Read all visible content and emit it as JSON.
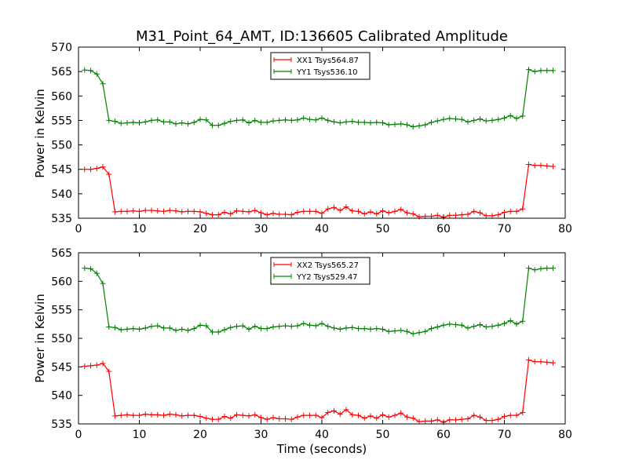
{
  "chart_data": {
    "type": "line",
    "title": "M31_Point_64_AMT, ID:136605 Calibrated Amplitude",
    "xlabel": "Time (seconds)",
    "panels": [
      {
        "ylabel": "Power in Kelvin",
        "xlim": [
          0,
          80
        ],
        "ylim": [
          535,
          570
        ],
        "xticks": [
          "0",
          "10",
          "20",
          "30",
          "40",
          "50",
          "60",
          "70",
          "80"
        ],
        "yticks": [
          "535",
          "540",
          "545",
          "550",
          "555",
          "560",
          "565",
          "570"
        ],
        "legend_loc": "upper center",
        "series": [
          {
            "name": "XX1 Tsys564.87",
            "color": "#ff0000",
            "x": [
              1,
              2,
              3,
              4,
              5,
              6,
              7,
              8,
              9,
              10,
              11,
              12,
              13,
              14,
              15,
              16,
              17,
              18,
              19,
              20,
              21,
              22,
              23,
              24,
              25,
              26,
              27,
              28,
              29,
              30,
              31,
              32,
              33,
              34,
              35,
              36,
              37,
              38,
              39,
              40,
              41,
              42,
              43,
              44,
              45,
              46,
              47,
              48,
              49,
              50,
              51,
              52,
              53,
              54,
              55,
              56,
              57,
              58,
              59,
              60,
              61,
              62,
              63,
              64,
              65,
              66,
              67,
              68,
              69,
              70,
              71,
              72,
              73,
              74,
              75,
              76,
              77,
              78
            ],
            "y": [
              545,
              545,
              545.2,
              545.5,
              544,
              536.3,
              536.4,
              536.4,
              536.5,
              536.4,
              536.6,
              536.6,
              536.5,
              536.4,
              536.6,
              536.5,
              536.3,
              536.4,
              536.4,
              536.3,
              536,
              535.7,
              535.7,
              536.2,
              535.9,
              536.5,
              536.4,
              536.3,
              536.6,
              536.1,
              535.7,
              536,
              535.8,
              535.8,
              535.7,
              536.2,
              536.4,
              536.4,
              536.4,
              536,
              536.9,
              537.2,
              536.6,
              537.3,
              536.5,
              536.4,
              535.9,
              536.3,
              535.9,
              536.5,
              536.1,
              536.4,
              536.8,
              536.1,
              535.9,
              535.3,
              535.4,
              535.4,
              535.6,
              535.2,
              535.6,
              535.6,
              535.7,
              535.8,
              536.4,
              536.1,
              535.5,
              535.5,
              535.7,
              536.2,
              536.4,
              536.4,
              536.9,
              546,
              545.8,
              545.8,
              545.7,
              545.6
            ]
          },
          {
            "name": "YY1 Tsys536.10",
            "color": "#008000",
            "x": [
              1,
              2,
              3,
              4,
              5,
              6,
              7,
              8,
              9,
              10,
              11,
              12,
              13,
              14,
              15,
              16,
              17,
              18,
              19,
              20,
              21,
              22,
              23,
              24,
              25,
              26,
              27,
              28,
              29,
              30,
              31,
              32,
              33,
              34,
              35,
              36,
              37,
              38,
              39,
              40,
              41,
              42,
              43,
              44,
              45,
              46,
              47,
              48,
              49,
              50,
              51,
              52,
              53,
              54,
              55,
              56,
              57,
              58,
              59,
              60,
              61,
              62,
              63,
              64,
              65,
              66,
              67,
              68,
              69,
              70,
              71,
              72,
              73,
              74,
              75,
              76,
              77,
              78
            ],
            "y": [
              565.3,
              565.2,
              564.5,
              562.5,
              555,
              554.8,
              554.4,
              554.5,
              554.6,
              554.5,
              554.7,
              555,
              555.1,
              554.7,
              554.7,
              554.3,
              554.5,
              554.3,
              554.6,
              555.2,
              555.1,
              554,
              554,
              554.4,
              554.8,
              555,
              555.1,
              554.5,
              555,
              554.6,
              554.6,
              554.9,
              555,
              555.1,
              555,
              555.1,
              555.5,
              555.2,
              555.1,
              555.5,
              555,
              554.7,
              554.5,
              554.7,
              554.8,
              554.6,
              554.6,
              554.5,
              554.6,
              554.5,
              554.1,
              554.2,
              554.3,
              554.1,
              553.7,
              553.9,
              554.1,
              554.6,
              554.9,
              555.2,
              555.4,
              555.3,
              555.2,
              554.7,
              555,
              555.3,
              554.9,
              555,
              555.2,
              555.5,
              556,
              555.4,
              555.9,
              565.4,
              565,
              565.2,
              565.2,
              565.2
            ]
          }
        ]
      },
      {
        "ylabel": "Power in Kelvin",
        "xlim": [
          0,
          80
        ],
        "ylim": [
          535,
          565
        ],
        "xticks": [
          "0",
          "10",
          "20",
          "30",
          "40",
          "50",
          "60",
          "70",
          "80"
        ],
        "yticks": [
          "535",
          "540",
          "545",
          "550",
          "555",
          "560",
          "565"
        ],
        "legend_loc": "upper center",
        "series": [
          {
            "name": "XX2 Tsys565.27",
            "color": "#ff0000",
            "x": [
              1,
              2,
              3,
              4,
              5,
              6,
              7,
              8,
              9,
              10,
              11,
              12,
              13,
              14,
              15,
              16,
              17,
              18,
              19,
              20,
              21,
              22,
              23,
              24,
              25,
              26,
              27,
              28,
              29,
              30,
              31,
              32,
              33,
              34,
              35,
              36,
              37,
              38,
              39,
              40,
              41,
              42,
              43,
              44,
              45,
              46,
              47,
              48,
              49,
              50,
              51,
              52,
              53,
              54,
              55,
              56,
              57,
              58,
              59,
              60,
              61,
              62,
              63,
              64,
              65,
              66,
              67,
              68,
              69,
              70,
              71,
              72,
              73,
              74,
              75,
              76,
              77,
              78
            ],
            "y": [
              545.1,
              545.2,
              545.3,
              545.6,
              544.2,
              536.4,
              536.5,
              536.6,
              536.5,
              536.5,
              536.7,
              536.6,
              536.6,
              536.5,
              536.7,
              536.6,
              536.4,
              536.5,
              536.5,
              536.3,
              536,
              535.8,
              535.8,
              536.3,
              536,
              536.6,
              536.5,
              536.4,
              536.6,
              536.1,
              535.8,
              536.1,
              535.9,
              535.9,
              535.8,
              536.2,
              536.5,
              536.5,
              536.5,
              536.1,
              537,
              537.3,
              536.7,
              537.5,
              536.6,
              536.5,
              536,
              536.4,
              536,
              536.6,
              536.2,
              536.5,
              536.9,
              536.2,
              536,
              535.4,
              535.5,
              535.5,
              535.7,
              535.3,
              535.7,
              535.7,
              535.8,
              535.9,
              536.5,
              536.2,
              535.6,
              535.6,
              535.8,
              536.3,
              536.5,
              536.5,
              537,
              546.2,
              545.9,
              545.9,
              545.8,
              545.7
            ]
          },
          {
            "name": "YY2 Tsys529.47",
            "color": "#008000",
            "x": [
              1,
              2,
              3,
              4,
              5,
              6,
              7,
              8,
              9,
              10,
              11,
              12,
              13,
              14,
              15,
              16,
              17,
              18,
              19,
              20,
              21,
              22,
              23,
              24,
              25,
              26,
              27,
              28,
              29,
              30,
              31,
              32,
              33,
              34,
              35,
              36,
              37,
              38,
              39,
              40,
              41,
              42,
              43,
              44,
              45,
              46,
              47,
              48,
              49,
              50,
              51,
              52,
              53,
              54,
              55,
              56,
              57,
              58,
              59,
              60,
              61,
              62,
              63,
              64,
              65,
              66,
              67,
              68,
              69,
              70,
              71,
              72,
              73,
              74,
              75,
              76,
              77,
              78
            ],
            "y": [
              562.3,
              562.2,
              561.4,
              559.6,
              552,
              551.9,
              551.5,
              551.6,
              551.7,
              551.6,
              551.8,
              552.1,
              552.2,
              551.8,
              551.8,
              551.4,
              551.6,
              551.4,
              551.7,
              552.3,
              552.2,
              551.1,
              551.1,
              551.5,
              551.9,
              552.1,
              552.2,
              551.6,
              552.1,
              551.7,
              551.7,
              552,
              552.1,
              552.2,
              552.1,
              552.2,
              552.6,
              552.3,
              552.2,
              552.6,
              552.1,
              551.8,
              551.6,
              551.8,
              551.9,
              551.7,
              551.7,
              551.6,
              551.7,
              551.6,
              551.2,
              551.3,
              551.4,
              551.2,
              550.8,
              551,
              551.2,
              551.7,
              552,
              552.3,
              552.5,
              552.4,
              552.3,
              551.8,
              552.1,
              552.4,
              552,
              552.1,
              552.3,
              552.6,
              553.1,
              552.5,
              553,
              562.3,
              562,
              562.2,
              562.3,
              562.3
            ]
          }
        ]
      }
    ]
  }
}
